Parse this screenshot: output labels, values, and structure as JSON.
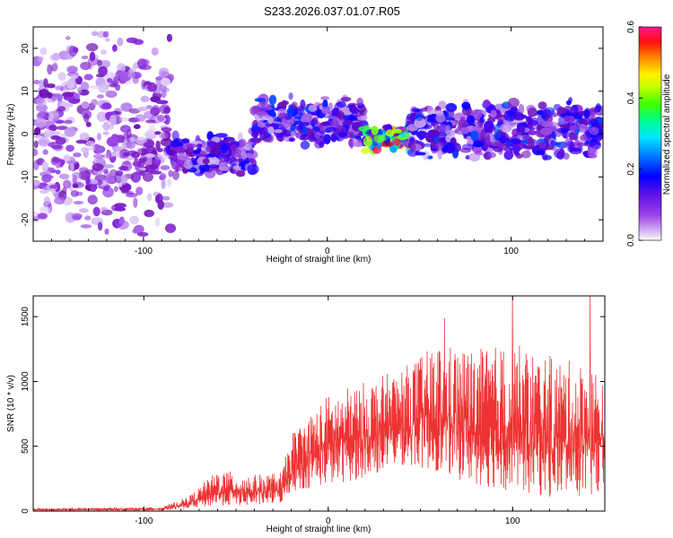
{
  "figure_title": "S233.2026.037.01.07.R05",
  "chart_data": [
    {
      "type": "heatmap",
      "title": "S233.2026.037.01.07.R05",
      "xlabel": "Height of straight line (km)",
      "ylabel": "Frequency (Hz)",
      "xlim": [
        -160,
        150
      ],
      "ylim": [
        -25,
        25
      ],
      "xticks": [
        "-100",
        "0",
        "100"
      ],
      "yticks": [
        "20",
        "10",
        "0",
        "-10",
        "-20"
      ],
      "colorbar": {
        "label": "Normalized spectral amplitude",
        "range": [
          0.0,
          0.6
        ],
        "ticks": [
          "0.0",
          "0.2",
          "0.4",
          "0.6"
        ],
        "colormap": [
          "#ffffff",
          "#c9a6f2",
          "#8a2be2",
          "#6a0dad",
          "#3a00ff",
          "#0000ff",
          "#0080ff",
          "#00e0ff",
          "#00ff80",
          "#80ff00",
          "#ffff00",
          "#ff8000",
          "#ff0000",
          "#ff1493"
        ]
      },
      "description_regions": [
        {
          "x_from": -160,
          "x_to": -85,
          "f_center": 0,
          "f_halfwidth": 25,
          "amplitude": 0.08
        },
        {
          "x_from": -85,
          "x_to": -40,
          "f_center": -5,
          "f_halfwidth": 5,
          "amplitude": 0.18
        },
        {
          "x_from": -40,
          "x_to": 20,
          "f_center": 3,
          "f_halfwidth": 6,
          "amplitude": 0.2
        },
        {
          "x_from": 20,
          "x_to": 45,
          "f_center": -1,
          "f_halfwidth": 3,
          "amplitude": 0.45
        },
        {
          "x_from": 45,
          "x_to": 150,
          "f_center": 1,
          "f_halfwidth": 7,
          "amplitude": 0.2
        }
      ]
    },
    {
      "type": "line",
      "title": "",
      "xlabel": "Height of straight line (km)",
      "ylabel": "SNR (10 * v/v)",
      "xlim": [
        -160,
        150
      ],
      "ylim": [
        0,
        1660
      ],
      "xticks": [
        "-100",
        "0",
        "100"
      ],
      "yticks": [
        "0",
        "500",
        "1000",
        "1500"
      ],
      "series": [
        {
          "name": "SNR",
          "color": "#ee3333",
          "envelope": [
            {
              "x": -160,
              "low": 5,
              "high": 20
            },
            {
              "x": -90,
              "low": 5,
              "high": 30
            },
            {
              "x": -75,
              "low": 20,
              "high": 120
            },
            {
              "x": -60,
              "low": 40,
              "high": 320
            },
            {
              "x": -40,
              "low": 40,
              "high": 280
            },
            {
              "x": -25,
              "low": 60,
              "high": 300
            },
            {
              "x": -20,
              "low": 150,
              "high": 600
            },
            {
              "x": 0,
              "low": 200,
              "high": 900
            },
            {
              "x": 20,
              "low": 250,
              "high": 1000
            },
            {
              "x": 40,
              "low": 350,
              "high": 1100
            },
            {
              "x": 60,
              "low": 300,
              "high": 1300
            },
            {
              "x": 80,
              "low": 200,
              "high": 1250
            },
            {
              "x": 100,
              "low": 150,
              "high": 1300
            },
            {
              "x": 120,
              "low": 100,
              "high": 1200
            },
            {
              "x": 150,
              "low": 100,
              "high": 1100
            }
          ],
          "peaks": [
            {
              "x": 63,
              "y": 1490
            },
            {
              "x": 100,
              "y": 1660
            },
            {
              "x": 142,
              "y": 1660
            }
          ]
        }
      ]
    }
  ]
}
